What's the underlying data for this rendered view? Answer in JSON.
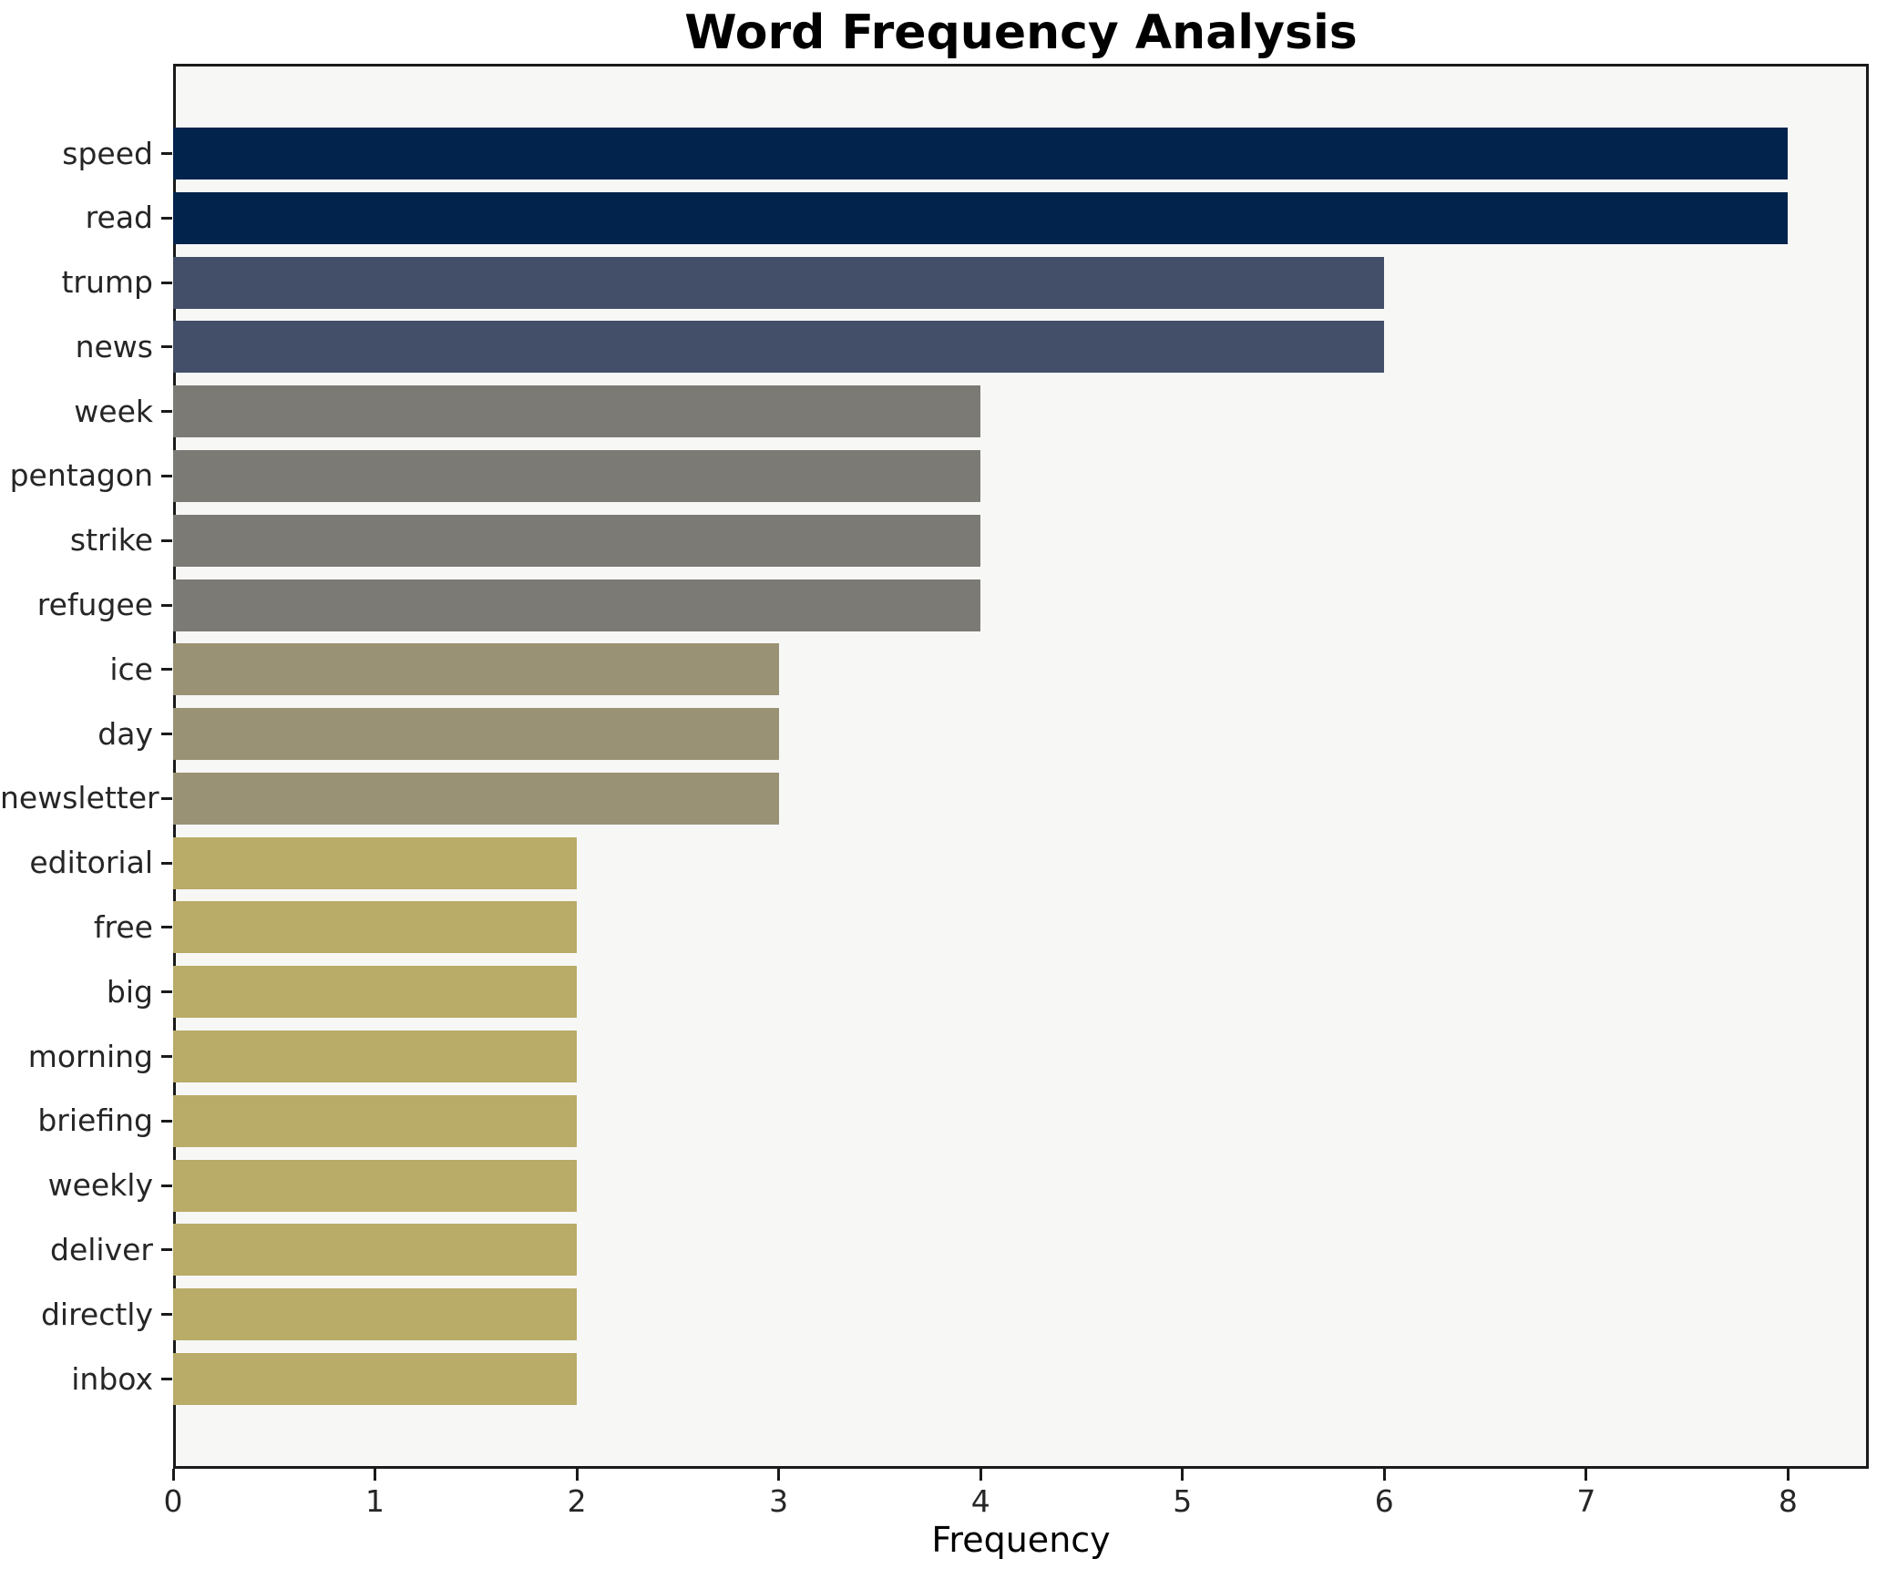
{
  "chart_data": {
    "type": "bar",
    "orientation": "horizontal",
    "title": "Word Frequency Analysis",
    "xlabel": "Frequency",
    "ylabel": "",
    "categories": [
      "speed",
      "read",
      "trump",
      "news",
      "week",
      "pentagon",
      "strike",
      "refugee",
      "ice",
      "day",
      "newsletter",
      "editorial",
      "free",
      "big",
      "morning",
      "briefing",
      "weekly",
      "deliver",
      "directly",
      "inbox"
    ],
    "values": [
      8,
      8,
      6,
      6,
      4,
      4,
      4,
      4,
      3,
      3,
      3,
      2,
      2,
      2,
      2,
      2,
      2,
      2,
      2,
      2
    ],
    "bar_colors": [
      "#02234c",
      "#02234c",
      "#434e68",
      "#434e68",
      "#7c7a75",
      "#7c7a75",
      "#7c7a75",
      "#7c7a75",
      "#9a9274",
      "#9a9274",
      "#9a9274",
      "#b9ab68",
      "#b9ab68",
      "#b9ab68",
      "#b9ab68",
      "#b9ab68",
      "#b9ab68",
      "#b9ab68",
      "#b9ab68",
      "#b9ab68"
    ],
    "xticks": [
      0,
      1,
      2,
      3,
      4,
      5,
      6,
      7,
      8
    ],
    "xlim": [
      0,
      8.4
    ],
    "grid": false,
    "legend": null,
    "colors": {
      "figure_background": "#ffffff",
      "plot_background": "#f7f7f6",
      "spine": "#1a1a1a",
      "tick_text": "#262626",
      "title_text": "#000000"
    }
  }
}
